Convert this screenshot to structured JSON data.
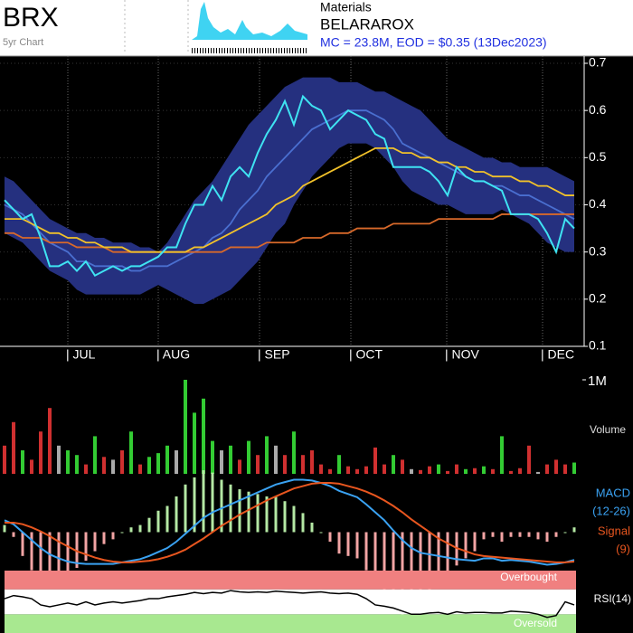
{
  "header": {
    "ticker": "BRX",
    "period": "5yr Chart",
    "sector": "Materials",
    "company": "BELARAROX",
    "summary": "MC = 23.8M, EOD = $0.35 (13Dec2023)"
  },
  "chart_data": [
    {
      "type": "line",
      "xlim": [
        0,
        63
      ],
      "xticks": [
        {
          "value": 7,
          "label": "| JUL"
        },
        {
          "value": 17,
          "label": "| AUG"
        },
        {
          "value": 28.2,
          "label": "| SEP"
        },
        {
          "value": 38.3,
          "label": "| OCT"
        },
        {
          "value": 48.9,
          "label": "| NOV"
        },
        {
          "value": 59.5,
          "label": "| DEC"
        }
      ],
      "ylim": [
        0.1,
        0.7
      ],
      "yticks": [
        0.1,
        0.2,
        0.3,
        0.4,
        0.5,
        0.6,
        0.7
      ],
      "grid": true,
      "band": {
        "color": "#25307f",
        "upper": [
          0.46,
          0.45,
          0.43,
          0.41,
          0.39,
          0.37,
          0.36,
          0.35,
          0.34,
          0.34,
          0.33,
          0.33,
          0.32,
          0.32,
          0.32,
          0.31,
          0.31,
          0.3,
          0.32,
          0.35,
          0.38,
          0.41,
          0.43,
          0.45,
          0.48,
          0.51,
          0.54,
          0.57,
          0.59,
          0.61,
          0.63,
          0.65,
          0.66,
          0.67,
          0.67,
          0.67,
          0.67,
          0.66,
          0.66,
          0.66,
          0.65,
          0.64,
          0.64,
          0.63,
          0.62,
          0.61,
          0.6,
          0.58,
          0.56,
          0.54,
          0.53,
          0.52,
          0.51,
          0.5,
          0.5,
          0.49,
          0.49,
          0.48,
          0.48,
          0.48,
          0.48,
          0.47,
          0.46,
          0.45
        ],
        "lower": [
          0.34,
          0.33,
          0.32,
          0.3,
          0.28,
          0.26,
          0.25,
          0.24,
          0.22,
          0.21,
          0.21,
          0.21,
          0.21,
          0.21,
          0.21,
          0.21,
          0.22,
          0.23,
          0.22,
          0.21,
          0.2,
          0.19,
          0.19,
          0.2,
          0.21,
          0.22,
          0.24,
          0.26,
          0.28,
          0.31,
          0.34,
          0.36,
          0.4,
          0.43,
          0.46,
          0.48,
          0.5,
          0.52,
          0.53,
          0.53,
          0.53,
          0.52,
          0.5,
          0.48,
          0.45,
          0.43,
          0.42,
          0.41,
          0.4,
          0.4,
          0.39,
          0.38,
          0.38,
          0.38,
          0.38,
          0.39,
          0.38,
          0.37,
          0.36,
          0.34,
          0.32,
          0.31,
          0.3,
          0.3
        ]
      },
      "series": [
        {
          "color": "#4a6fd0",
          "values": [
            0.4,
            0.39,
            0.38,
            0.36,
            0.34,
            0.32,
            0.31,
            0.3,
            0.28,
            0.28,
            0.27,
            0.27,
            0.27,
            0.27,
            0.26,
            0.26,
            0.27,
            0.27,
            0.27,
            0.28,
            0.29,
            0.3,
            0.31,
            0.33,
            0.34,
            0.36,
            0.39,
            0.41,
            0.43,
            0.46,
            0.48,
            0.5,
            0.52,
            0.54,
            0.56,
            0.57,
            0.58,
            0.59,
            0.6,
            0.6,
            0.6,
            0.59,
            0.58,
            0.56,
            0.53,
            0.52,
            0.51,
            0.5,
            0.49,
            0.48,
            0.47,
            0.46,
            0.45,
            0.45,
            0.44,
            0.44,
            0.43,
            0.42,
            0.42,
            0.41,
            0.4,
            0.39,
            0.38,
            0.37
          ]
        },
        {
          "color": "#d8692a",
          "values": [
            0.34,
            0.34,
            0.33,
            0.33,
            0.33,
            0.32,
            0.32,
            0.32,
            0.31,
            0.31,
            0.31,
            0.31,
            0.3,
            0.3,
            0.3,
            0.3,
            0.3,
            0.3,
            0.3,
            0.3,
            0.3,
            0.3,
            0.3,
            0.3,
            0.3,
            0.31,
            0.31,
            0.31,
            0.31,
            0.32,
            0.32,
            0.32,
            0.32,
            0.33,
            0.33,
            0.33,
            0.34,
            0.34,
            0.34,
            0.35,
            0.35,
            0.35,
            0.35,
            0.36,
            0.36,
            0.36,
            0.36,
            0.36,
            0.37,
            0.37,
            0.37,
            0.37,
            0.37,
            0.37,
            0.37,
            0.38,
            0.38,
            0.38,
            0.38,
            0.38,
            0.38,
            0.38,
            0.38,
            0.38
          ]
        },
        {
          "color": "#f2c22a",
          "values": [
            0.37,
            0.37,
            0.37,
            0.36,
            0.35,
            0.34,
            0.34,
            0.33,
            0.33,
            0.32,
            0.32,
            0.31,
            0.31,
            0.31,
            0.3,
            0.3,
            0.3,
            0.3,
            0.3,
            0.3,
            0.3,
            0.31,
            0.31,
            0.32,
            0.33,
            0.34,
            0.35,
            0.36,
            0.37,
            0.38,
            0.4,
            0.41,
            0.42,
            0.44,
            0.45,
            0.46,
            0.47,
            0.48,
            0.49,
            0.5,
            0.51,
            0.52,
            0.52,
            0.52,
            0.51,
            0.51,
            0.5,
            0.5,
            0.49,
            0.49,
            0.48,
            0.48,
            0.47,
            0.47,
            0.46,
            0.46,
            0.46,
            0.45,
            0.45,
            0.44,
            0.44,
            0.43,
            0.42,
            0.42
          ]
        },
        {
          "color": "#3fe3f2",
          "values": [
            0.41,
            0.39,
            0.37,
            0.38,
            0.33,
            0.27,
            0.27,
            0.28,
            0.26,
            0.28,
            0.25,
            0.26,
            0.27,
            0.26,
            0.27,
            0.27,
            0.28,
            0.29,
            0.31,
            0.31,
            0.36,
            0.4,
            0.4,
            0.44,
            0.41,
            0.46,
            0.48,
            0.46,
            0.51,
            0.55,
            0.58,
            0.62,
            0.57,
            0.63,
            0.61,
            0.6,
            0.56,
            0.58,
            0.6,
            0.59,
            0.58,
            0.55,
            0.54,
            0.48,
            0.48,
            0.48,
            0.48,
            0.47,
            0.45,
            0.42,
            0.48,
            0.46,
            0.45,
            0.45,
            0.44,
            0.43,
            0.38,
            0.38,
            0.38,
            0.37,
            0.34,
            0.3,
            0.37,
            0.35
          ]
        }
      ]
    },
    {
      "type": "bar",
      "ylabel": "Volume",
      "xlim": [
        0,
        63
      ],
      "ylim": [
        0,
        1000000
      ],
      "yticks": [
        {
          "value": 1000000,
          "label": "1M"
        }
      ],
      "values": [
        300000,
        550000,
        250000,
        150000,
        450000,
        700000,
        300000,
        250000,
        200000,
        100000,
        400000,
        180000,
        150000,
        250000,
        450000,
        100000,
        180000,
        220000,
        300000,
        250000,
        1000000,
        650000,
        800000,
        350000,
        250000,
        300000,
        150000,
        350000,
        200000,
        400000,
        300000,
        200000,
        450000,
        200000,
        250000,
        100000,
        50000,
        200000,
        80000,
        50000,
        80000,
        280000,
        100000,
        200000,
        150000,
        50000,
        40000,
        80000,
        100000,
        30000,
        100000,
        50000,
        60000,
        80000,
        50000,
        400000,
        30000,
        60000,
        300000,
        20000,
        100000,
        150000,
        100000,
        120000
      ],
      "colors": [
        "#d03030",
        "#d03030",
        "#33cc33",
        "#d03030",
        "#d03030",
        "#d03030",
        "#aaaaaa",
        "#33cc33",
        "#33cc33",
        "#d03030",
        "#33cc33",
        "#d03030",
        "#aaaaaa",
        "#d03030",
        "#33cc33",
        "#d03030",
        "#33cc33",
        "#33cc33",
        "#33cc33",
        "#aaaaaa",
        "#33cc33",
        "#33cc33",
        "#33cc33",
        "#33cc33",
        "#aaaaaa",
        "#33cc33",
        "#d03030",
        "#33cc33",
        "#d03030",
        "#33cc33",
        "#aaaaaa",
        "#d03030",
        "#33cc33",
        "#d03030",
        "#d03030",
        "#d03030",
        "#d03030",
        "#33cc33",
        "#d03030",
        "#d03030",
        "#d03030",
        "#d03030",
        "#d03030",
        "#33cc33",
        "#d03030",
        "#aaaaaa",
        "#d03030",
        "#d03030",
        "#33cc33",
        "#d03030",
        "#d03030",
        "#33cc33",
        "#d03030",
        "#33cc33",
        "#d03030",
        "#33cc33",
        "#d03030",
        "#d03030",
        "#d03030",
        "#aaaaaa",
        "#d03030",
        "#d03030",
        "#d03030",
        "#33cc33"
      ]
    },
    {
      "type": "macd",
      "xlim": [
        0,
        63
      ],
      "ylim": [
        -0.045,
        0.07
      ],
      "hist_colors": [
        "#b4e8a4",
        "#f2a4a4"
      ],
      "series": [
        {
          "name": "MACD",
          "period": "(12-26)",
          "color": "#3aa2f2",
          "values": [
            0.015,
            0.01,
            0,
            -0.01,
            -0.02,
            -0.028,
            -0.033,
            -0.037,
            -0.039,
            -0.04,
            -0.04,
            -0.04,
            -0.04,
            -0.038,
            -0.036,
            -0.034,
            -0.03,
            -0.025,
            -0.02,
            -0.012,
            -0.002,
            0.008,
            0.018,
            0.025,
            0.03,
            0.035,
            0.04,
            0.045,
            0.05,
            0.055,
            0.06,
            0.063,
            0.066,
            0.066,
            0.065,
            0.062,
            0.058,
            0.052,
            0.048,
            0.044,
            0.035,
            0.025,
            0.015,
            0.002,
            -0.01,
            -0.02,
            -0.026,
            -0.028,
            -0.03,
            -0.032,
            -0.034,
            -0.035,
            -0.036,
            -0.033,
            -0.033,
            -0.036,
            -0.035,
            -0.036,
            -0.037,
            -0.039,
            -0.041,
            -0.04,
            -0.038,
            -0.035
          ]
        },
        {
          "name": "Signal",
          "period": "(9)",
          "color": "#e8561f",
          "values": [
            0.012,
            0.012,
            0.01,
            0.006,
            0.001,
            -0.005,
            -0.012,
            -0.018,
            -0.024,
            -0.028,
            -0.032,
            -0.035,
            -0.037,
            -0.038,
            -0.038,
            -0.037,
            -0.036,
            -0.034,
            -0.031,
            -0.027,
            -0.022,
            -0.015,
            -0.008,
            0,
            0.008,
            0.015,
            0.022,
            0.028,
            0.034,
            0.04,
            0.045,
            0.05,
            0.055,
            0.058,
            0.061,
            0.062,
            0.062,
            0.061,
            0.058,
            0.055,
            0.051,
            0.046,
            0.04,
            0.033,
            0.025,
            0.016,
            0.008,
            0,
            -0.008,
            -0.014,
            -0.02,
            -0.024,
            -0.028,
            -0.03,
            -0.031,
            -0.032,
            -0.033,
            -0.034,
            -0.035,
            -0.036,
            -0.037,
            -0.038,
            -0.038,
            -0.037
          ]
        }
      ]
    },
    {
      "type": "rsi",
      "name": "RSI(14)",
      "xlim": [
        0,
        63
      ],
      "ylim": [
        0,
        100
      ],
      "levels": [
        30,
        70
      ],
      "overbought": "Overbought",
      "oversold": "Oversold",
      "colors": [
        "#a8e890",
        "#ffffff",
        "#f08080"
      ],
      "values": [
        55,
        60,
        58,
        55,
        45,
        42,
        45,
        48,
        45,
        50,
        45,
        48,
        50,
        48,
        50,
        52,
        55,
        55,
        58,
        60,
        62,
        65,
        63,
        65,
        64,
        68,
        66,
        65,
        66,
        65,
        67,
        66,
        65,
        64,
        65,
        66,
        64,
        63,
        64,
        62,
        55,
        45,
        43,
        40,
        35,
        30,
        30,
        32,
        33,
        30,
        34,
        32,
        33,
        33,
        32,
        32,
        35,
        34,
        33,
        30,
        25,
        28,
        50,
        45
      ]
    }
  ]
}
